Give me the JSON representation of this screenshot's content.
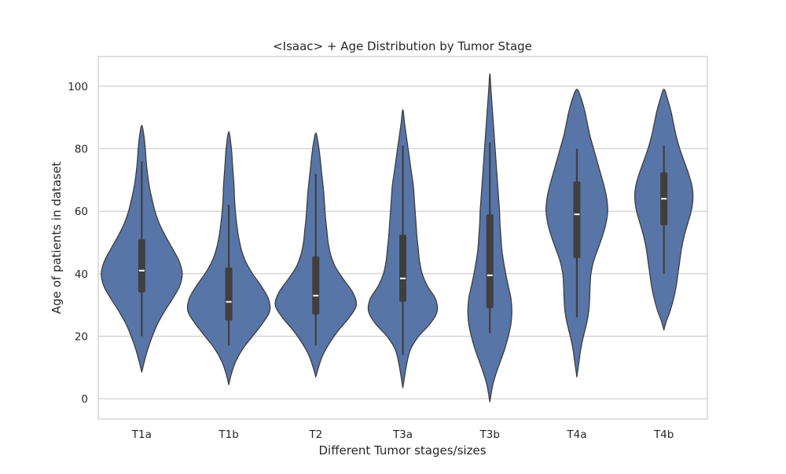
{
  "chart_data": {
    "type": "violin",
    "title": "<Isaac> + Age Distribution by Tumor Stage",
    "xlabel": "Different Tumor stages/sizes",
    "ylabel": "Age of patients in dataset",
    "ylim": [
      -6.5,
      109.5
    ],
    "yticks": [
      0,
      20,
      40,
      60,
      80,
      100
    ],
    "grid": true,
    "legend": "none",
    "colors": {
      "violin_fill": "#5875a8",
      "violin_edge": "#3d3d3d",
      "box": "#3f3f3f",
      "median": "#ffffff",
      "grid": "#cccccc",
      "frame": "#cccccc"
    },
    "categories": [
      "T1a",
      "T1b",
      "T2",
      "T3a",
      "T3b",
      "T4a",
      "T4b"
    ],
    "violins": [
      {
        "category": "T1a",
        "box": {
          "whisker_low": 20,
          "q1": 34,
          "median": 41,
          "q3": 51,
          "whisker_high": 76
        },
        "density": [
          [
            8.5,
            0.0
          ],
          [
            12,
            0.06
          ],
          [
            16,
            0.14
          ],
          [
            20,
            0.24
          ],
          [
            24,
            0.36
          ],
          [
            28,
            0.52
          ],
          [
            32,
            0.7
          ],
          [
            36,
            0.86
          ],
          [
            40,
            0.92
          ],
          [
            44,
            0.85
          ],
          [
            48,
            0.7
          ],
          [
            52,
            0.54
          ],
          [
            56,
            0.4
          ],
          [
            60,
            0.3
          ],
          [
            64,
            0.23
          ],
          [
            68,
            0.17
          ],
          [
            72,
            0.13
          ],
          [
            76,
            0.1
          ],
          [
            80,
            0.08
          ],
          [
            84,
            0.05
          ],
          [
            87.5,
            0.0
          ]
        ]
      },
      {
        "category": "T1b",
        "box": {
          "whisker_low": 17,
          "q1": 25,
          "median": 31,
          "q3": 42,
          "whisker_high": 62
        },
        "density": [
          [
            4.5,
            0.0
          ],
          [
            8,
            0.06
          ],
          [
            12,
            0.16
          ],
          [
            16,
            0.32
          ],
          [
            20,
            0.54
          ],
          [
            24,
            0.76
          ],
          [
            28,
            0.93
          ],
          [
            32,
            0.9
          ],
          [
            36,
            0.74
          ],
          [
            40,
            0.54
          ],
          [
            44,
            0.38
          ],
          [
            48,
            0.28
          ],
          [
            52,
            0.22
          ],
          [
            56,
            0.18
          ],
          [
            60,
            0.15
          ],
          [
            64,
            0.13
          ],
          [
            68,
            0.12
          ],
          [
            72,
            0.1
          ],
          [
            76,
            0.08
          ],
          [
            80,
            0.06
          ],
          [
            85.5,
            0.0
          ]
        ]
      },
      {
        "category": "T2",
        "box": {
          "whisker_low": 17,
          "q1": 27,
          "median": 33,
          "q3": 45.5,
          "whisker_high": 72
        },
        "density": [
          [
            7,
            0.0
          ],
          [
            10,
            0.06
          ],
          [
            14,
            0.16
          ],
          [
            18,
            0.32
          ],
          [
            22,
            0.52
          ],
          [
            26,
            0.76
          ],
          [
            30,
            0.92
          ],
          [
            34,
            0.84
          ],
          [
            38,
            0.64
          ],
          [
            42,
            0.45
          ],
          [
            46,
            0.34
          ],
          [
            50,
            0.28
          ],
          [
            54,
            0.25
          ],
          [
            58,
            0.22
          ],
          [
            62,
            0.2
          ],
          [
            66,
            0.18
          ],
          [
            70,
            0.15
          ],
          [
            74,
            0.12
          ],
          [
            78,
            0.09
          ],
          [
            82,
            0.05
          ],
          [
            85,
            0.0
          ]
        ]
      },
      {
        "category": "T3a",
        "box": {
          "whisker_low": 14,
          "q1": 31,
          "median": 38.5,
          "q3": 52.5,
          "whisker_high": 81
        },
        "density": [
          [
            3.5,
            0.0
          ],
          [
            8,
            0.05
          ],
          [
            12,
            0.1
          ],
          [
            16,
            0.18
          ],
          [
            20,
            0.36
          ],
          [
            24,
            0.62
          ],
          [
            28,
            0.78
          ],
          [
            32,
            0.74
          ],
          [
            36,
            0.56
          ],
          [
            40,
            0.44
          ],
          [
            44,
            0.38
          ],
          [
            48,
            0.35
          ],
          [
            52,
            0.32
          ],
          [
            56,
            0.3
          ],
          [
            60,
            0.28
          ],
          [
            64,
            0.26
          ],
          [
            68,
            0.24
          ],
          [
            72,
            0.2
          ],
          [
            76,
            0.16
          ],
          [
            80,
            0.12
          ],
          [
            84,
            0.08
          ],
          [
            88,
            0.04
          ],
          [
            92.5,
            0.0
          ]
        ]
      },
      {
        "category": "T3b",
        "box": {
          "whisker_low": 21,
          "q1": 29,
          "median": 39.5,
          "q3": 59,
          "whisker_high": 82
        },
        "density": [
          [
            -1,
            0.0
          ],
          [
            4,
            0.06
          ],
          [
            8,
            0.14
          ],
          [
            12,
            0.24
          ],
          [
            16,
            0.34
          ],
          [
            20,
            0.42
          ],
          [
            24,
            0.48
          ],
          [
            28,
            0.5
          ],
          [
            32,
            0.48
          ],
          [
            36,
            0.42
          ],
          [
            40,
            0.36
          ],
          [
            44,
            0.31
          ],
          [
            48,
            0.27
          ],
          [
            52,
            0.25
          ],
          [
            56,
            0.23
          ],
          [
            60,
            0.22
          ],
          [
            64,
            0.2
          ],
          [
            68,
            0.18
          ],
          [
            72,
            0.16
          ],
          [
            76,
            0.14
          ],
          [
            80,
            0.12
          ],
          [
            84,
            0.1
          ],
          [
            88,
            0.08
          ],
          [
            92,
            0.06
          ],
          [
            96,
            0.04
          ],
          [
            100,
            0.02
          ],
          [
            104,
            0.0
          ]
        ]
      },
      {
        "category": "T4a",
        "box": {
          "whisker_low": 26,
          "q1": 45,
          "median": 59,
          "q3": 69.5,
          "whisker_high": 80
        },
        "density": [
          [
            7,
            0.0
          ],
          [
            12,
            0.05
          ],
          [
            16,
            0.09
          ],
          [
            20,
            0.15
          ],
          [
            24,
            0.22
          ],
          [
            28,
            0.27
          ],
          [
            32,
            0.29
          ],
          [
            36,
            0.3
          ],
          [
            40,
            0.32
          ],
          [
            44,
            0.38
          ],
          [
            48,
            0.48
          ],
          [
            52,
            0.58
          ],
          [
            56,
            0.66
          ],
          [
            60,
            0.7
          ],
          [
            64,
            0.68
          ],
          [
            68,
            0.62
          ],
          [
            72,
            0.54
          ],
          [
            76,
            0.46
          ],
          [
            80,
            0.38
          ],
          [
            84,
            0.3
          ],
          [
            88,
            0.24
          ],
          [
            92,
            0.18
          ],
          [
            96,
            0.1
          ],
          [
            99,
            0.0
          ]
        ]
      },
      {
        "category": "T4b",
        "box": {
          "whisker_low": 40,
          "q1": 55.5,
          "median": 64,
          "q3": 72.5,
          "whisker_high": 81
        },
        "density": [
          [
            22,
            0.0
          ],
          [
            25,
            0.06
          ],
          [
            28,
            0.14
          ],
          [
            32,
            0.22
          ],
          [
            36,
            0.28
          ],
          [
            40,
            0.32
          ],
          [
            44,
            0.36
          ],
          [
            48,
            0.4
          ],
          [
            52,
            0.46
          ],
          [
            56,
            0.54
          ],
          [
            60,
            0.62
          ],
          [
            64,
            0.66
          ],
          [
            68,
            0.64
          ],
          [
            72,
            0.56
          ],
          [
            76,
            0.46
          ],
          [
            80,
            0.36
          ],
          [
            84,
            0.28
          ],
          [
            88,
            0.22
          ],
          [
            92,
            0.16
          ],
          [
            96,
            0.08
          ],
          [
            99,
            0.0
          ]
        ]
      }
    ]
  }
}
